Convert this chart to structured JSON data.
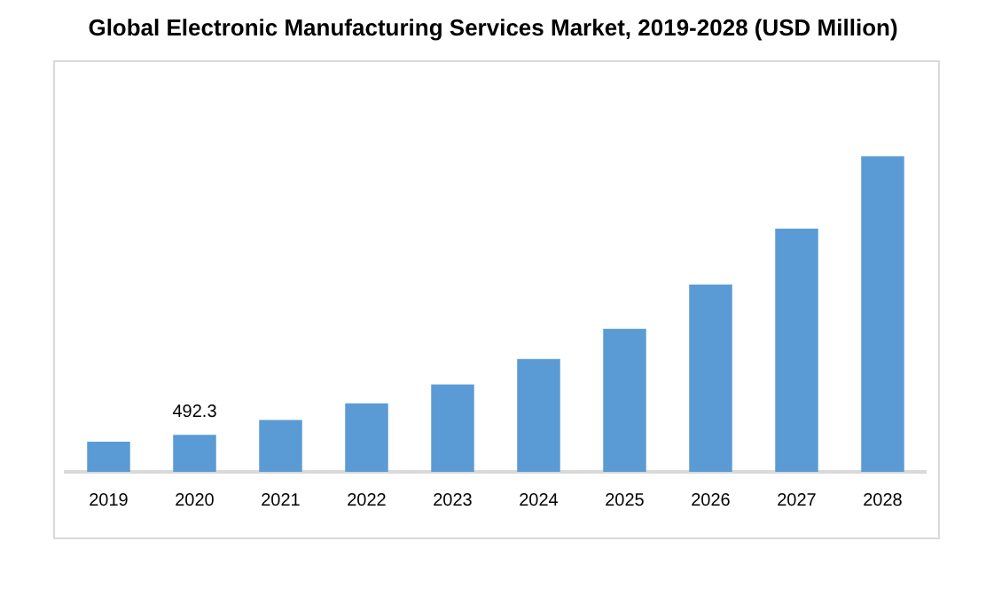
{
  "chart_data": {
    "type": "bar",
    "title": "Global Electronic Manufacturing Services Market, 2019-2028 (USD Million)",
    "categories": [
      "2019",
      "2020",
      "2021",
      "2022",
      "2023",
      "2024",
      "2025",
      "2026",
      "2027",
      "2028"
    ],
    "values": [
      400,
      492.3,
      690,
      910,
      1160,
      1500,
      1900,
      2490,
      3230,
      4190
    ],
    "value_labels": [
      null,
      "492.3",
      null,
      null,
      null,
      null,
      null,
      null,
      null,
      null
    ],
    "color": "#5b9bd5",
    "grid": false,
    "legend": false
  }
}
